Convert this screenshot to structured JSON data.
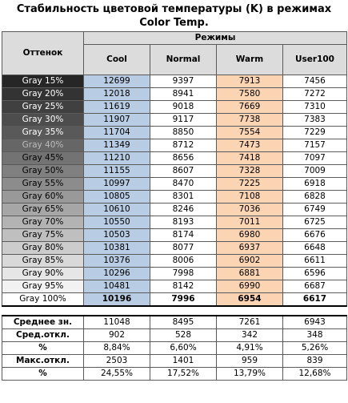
{
  "title": "Стабильность цветовой температуры (K) в режимах Color Temp.",
  "header": {
    "group": "Режимы",
    "shade_col": "Оттенок",
    "modes": [
      "Cool",
      "Normal",
      "Warm",
      "User100"
    ]
  },
  "chart_data": {
    "type": "table",
    "title": "Стабильность цветовой температуры (K) в режимах Color Temp.",
    "columns": [
      "Оттенок",
      "Cool",
      "Normal",
      "Warm",
      "User100"
    ],
    "rows": [
      {
        "shade": "Gray 15%",
        "bg": "#262626",
        "fg": "#ffffff",
        "values": [
          "12699",
          "9397",
          "7913",
          "7456"
        ]
      },
      {
        "shade": "Gray 20%",
        "bg": "#333333",
        "fg": "#ffffff",
        "values": [
          "12018",
          "8941",
          "7580",
          "7272"
        ]
      },
      {
        "shade": "Gray 25%",
        "bg": "#404040",
        "fg": "#ffffff",
        "values": [
          "11619",
          "9018",
          "7669",
          "7310"
        ]
      },
      {
        "shade": "Gray 30%",
        "bg": "#4d4d4d",
        "fg": "#ffffff",
        "values": [
          "11907",
          "9117",
          "7738",
          "7383"
        ]
      },
      {
        "shade": "Gray 35%",
        "bg": "#595959",
        "fg": "#ffffff",
        "values": [
          "11704",
          "8850",
          "7554",
          "7229"
        ]
      },
      {
        "shade": "Gray 40%",
        "bg": "#666666",
        "fg": "#bbbbbb",
        "values": [
          "11349",
          "8712",
          "7473",
          "7157"
        ]
      },
      {
        "shade": "Gray 45%",
        "bg": "#737373",
        "fg": "#000000",
        "values": [
          "11210",
          "8656",
          "7418",
          "7097"
        ]
      },
      {
        "shade": "Gray 50%",
        "bg": "#808080",
        "fg": "#000000",
        "values": [
          "11155",
          "8607",
          "7328",
          "7009"
        ]
      },
      {
        "shade": "Gray 55%",
        "bg": "#8c8c8c",
        "fg": "#000000",
        "values": [
          "10997",
          "8470",
          "7225",
          "6918"
        ]
      },
      {
        "shade": "Gray 60%",
        "bg": "#999999",
        "fg": "#000000",
        "values": [
          "10805",
          "8301",
          "7108",
          "6828"
        ]
      },
      {
        "shade": "Gray 65%",
        "bg": "#a6a6a6",
        "fg": "#000000",
        "values": [
          "10610",
          "8246",
          "7036",
          "6749"
        ]
      },
      {
        "shade": "Gray 70%",
        "bg": "#b3b3b3",
        "fg": "#000000",
        "values": [
          "10550",
          "8193",
          "7011",
          "6725"
        ]
      },
      {
        "shade": "Gray 75%",
        "bg": "#bfbfbf",
        "fg": "#000000",
        "values": [
          "10503",
          "8174",
          "6980",
          "6676"
        ]
      },
      {
        "shade": "Gray 80%",
        "bg": "#cccccc",
        "fg": "#000000",
        "values": [
          "10381",
          "8077",
          "6937",
          "6648"
        ]
      },
      {
        "shade": "Gray 85%",
        "bg": "#d9d9d9",
        "fg": "#000000",
        "values": [
          "10376",
          "8006",
          "6902",
          "6611"
        ]
      },
      {
        "shade": "Gray 90%",
        "bg": "#e6e6e6",
        "fg": "#000000",
        "values": [
          "10296",
          "7998",
          "6881",
          "6596"
        ]
      },
      {
        "shade": "Gray 95%",
        "bg": "#f2f2f2",
        "fg": "#000000",
        "values": [
          "10481",
          "8142",
          "6990",
          "6687"
        ]
      },
      {
        "shade": "Gray 100%",
        "bg": "#ffffff",
        "fg": "#000000",
        "values": [
          "10196",
          "7996",
          "6954",
          "6617"
        ],
        "bold": true
      }
    ],
    "stats": [
      {
        "label": "Среднее зн.",
        "values": [
          "11048",
          "8495",
          "7261",
          "6943"
        ]
      },
      {
        "label": "Сред.откл.",
        "values": [
          "902",
          "528",
          "342",
          "348"
        ]
      },
      {
        "label": "%",
        "values": [
          "8,84%",
          "6,60%",
          "4,91%",
          "5,26%"
        ]
      },
      {
        "label": "Макс.откл.",
        "values": [
          "2503",
          "1401",
          "959",
          "839"
        ]
      },
      {
        "label": "%",
        "values": [
          "24,55%",
          "17,52%",
          "13,79%",
          "12,68%"
        ]
      }
    ]
  },
  "colors": {
    "cool": "#b8cce4",
    "warm": "#fbd4b4",
    "header_bg": "#dcdcdc"
  }
}
